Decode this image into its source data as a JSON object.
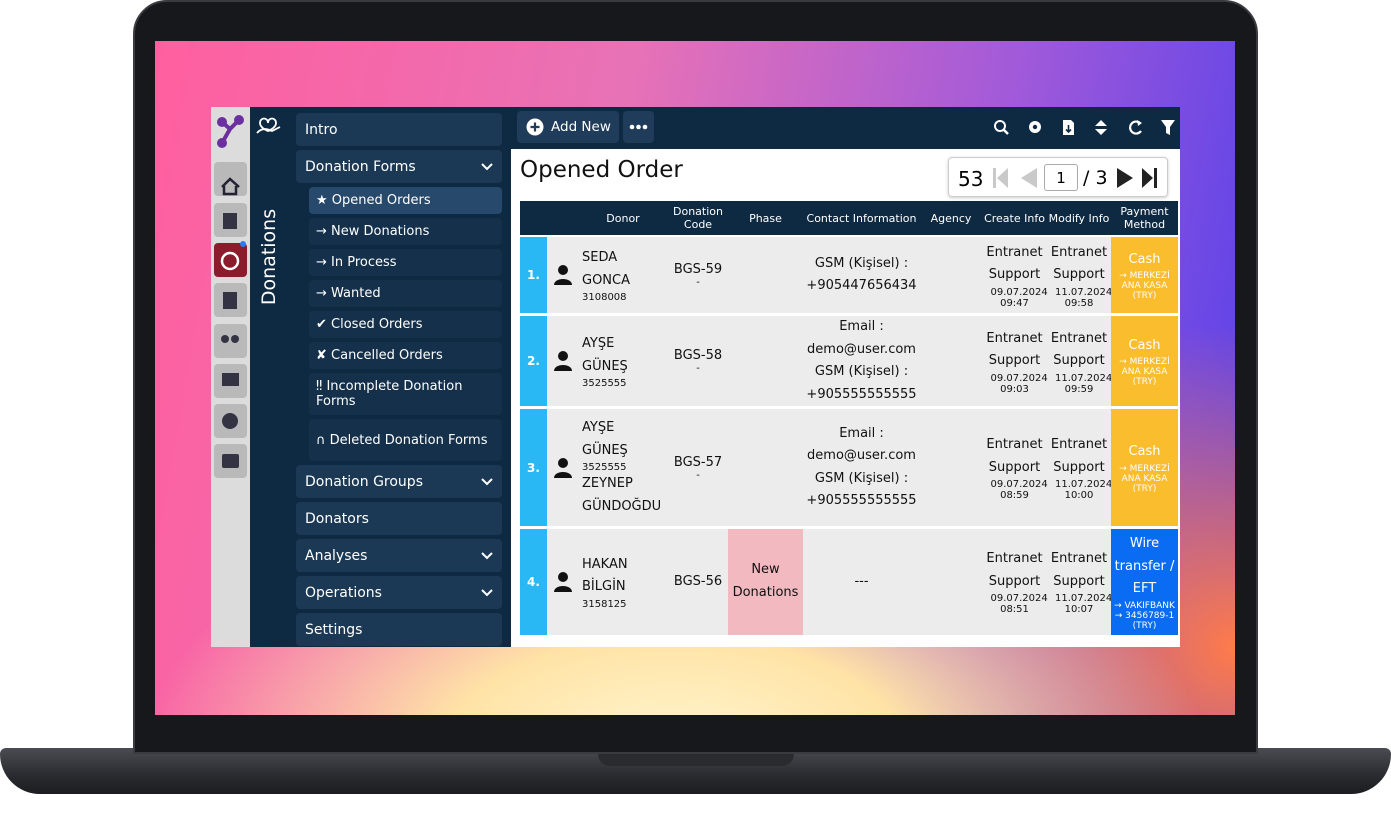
{
  "sidebar": {
    "section_title": "Donations",
    "menu": [
      {
        "label": "Intro"
      },
      {
        "label": "Donation Forms",
        "expandable": true,
        "children": [
          {
            "label": "★ Opened Orders",
            "active": true
          },
          {
            "label": "→ New Donations"
          },
          {
            "label": "→ In Process"
          },
          {
            "label": "→ Wanted"
          },
          {
            "label": "✔ Closed Orders"
          },
          {
            "label": "✘ Cancelled Orders"
          },
          {
            "label": "‼ Incomplete Donation Forms"
          },
          {
            "label": "∩ Deleted Donation Forms"
          }
        ]
      },
      {
        "label": "Donation Groups",
        "expandable": true
      },
      {
        "label": "Donators"
      },
      {
        "label": "Analyses",
        "expandable": true
      },
      {
        "label": "Operations",
        "expandable": true
      },
      {
        "label": "Settings"
      }
    ]
  },
  "toolbar": {
    "add_new": "Add New"
  },
  "page": {
    "title": "Opened Order",
    "total": 53,
    "current_page": 1,
    "page_of": "/ 3"
  },
  "table": {
    "headers": [
      "Donor",
      "Donation Code",
      "Phase",
      "Contact Information",
      "Agency",
      "Create Info",
      "Modify Info",
      "Payment Method"
    ],
    "rows": [
      {
        "no": "1.",
        "donors": [
          {
            "name": "SEDA GONCA",
            "id": "3108008"
          }
        ],
        "code": "BGS-59",
        "code_sub": "-",
        "contact": [
          "GSM (Kişisel) :",
          "+905447656434"
        ],
        "create": {
          "user": "Entranet Support",
          "date": "09.07.2024 09:47"
        },
        "modify": {
          "user": "Entranet Support",
          "date": "11.07.2024 09:58"
        },
        "payment": {
          "method": "Cash",
          "detail": "→ MERKEZİ ANA KASA (TRY)",
          "color": "#f9bd2e"
        }
      },
      {
        "no": "2.",
        "donors": [
          {
            "name": "AYŞE GÜNEŞ",
            "id": "3525555"
          }
        ],
        "code": "BGS-58",
        "code_sub": "-",
        "contact": [
          "Email :",
          "demo@user.com",
          "GSM (Kişisel) :",
          "+905555555555"
        ],
        "create": {
          "user": "Entranet Support",
          "date": "09.07.2024 09:03"
        },
        "modify": {
          "user": "Entranet Support",
          "date": "11.07.2024 09:59"
        },
        "payment": {
          "method": "Cash",
          "detail": "→ MERKEZİ ANA KASA (TRY)",
          "color": "#f9bd2e"
        }
      },
      {
        "no": "3.",
        "donors": [
          {
            "name": "AYŞE GÜNEŞ",
            "id": "3525555"
          },
          {
            "name": "ZEYNEP GÜNDOĞDU"
          }
        ],
        "code": "BGS-57",
        "code_sub": "-",
        "contact": [
          "Email :",
          "demo@user.com",
          "GSM (Kişisel) :",
          "+905555555555"
        ],
        "create": {
          "user": "Entranet Support",
          "date": "09.07.2024 08:59"
        },
        "modify": {
          "user": "Entranet Support",
          "date": "11.07.2024 10:00"
        },
        "payment": {
          "method": "Cash",
          "detail": "→ MERKEZİ ANA KASA (TRY)",
          "color": "#f9bd2e"
        }
      },
      {
        "no": "4.",
        "donors": [
          {
            "name": "HAKAN BİLGİN",
            "id": "3158125"
          }
        ],
        "code": "BGS-56",
        "phase": "New Donations",
        "contact": [
          "---"
        ],
        "create": {
          "user": "Entranet Support",
          "date": "09.07.2024 08:51"
        },
        "modify": {
          "user": "Entranet Support",
          "date": "11.07.2024 10:07"
        },
        "payment": {
          "method": "Wire transfer / EFT",
          "detail": "→ VAKIFBANK → 3456789-1 (TRY)",
          "color": "#0a6cf2"
        }
      }
    ]
  }
}
